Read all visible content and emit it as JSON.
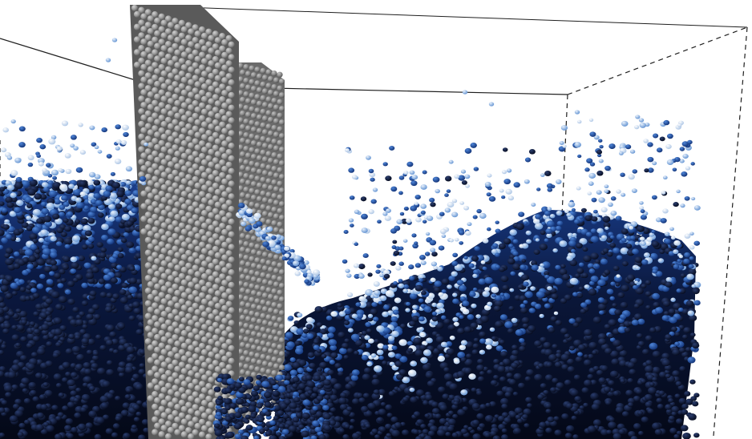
{
  "scene": {
    "kind": "particle-fluid-simulation-render",
    "objects": [
      "domain-wireframe-box",
      "sphere-wall-front",
      "sphere-wall-rear",
      "fluid-particles"
    ],
    "colors": {
      "background": "#ffffff",
      "wall_sphere_light": "#c4c4c4",
      "wall_sphere_dark": "#5e5e5e",
      "fluid_deep": "#0a1433",
      "fluid_mid": "#1d4fa6",
      "fluid_light": "#8db7ea",
      "spray_pale": "#cfe0f5",
      "wireframe": "#222222"
    }
  }
}
